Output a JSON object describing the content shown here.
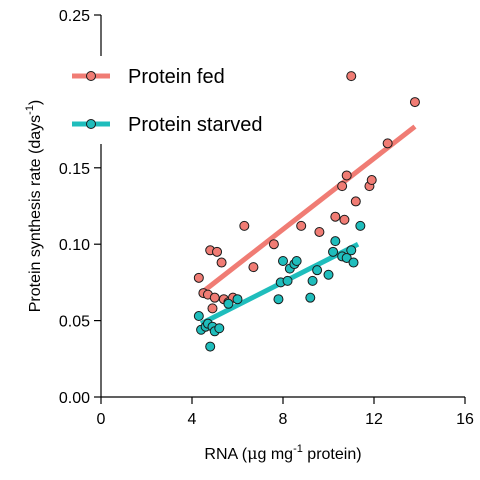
{
  "chart_data": {
    "type": "scatter",
    "xlabel": {
      "pre": "RNA  (",
      "mu": "μ",
      "mid": "g  mg",
      "sup": "-1",
      "post": " protein)"
    },
    "ylabel": {
      "pre": "Protein synthesis rate  (days",
      "sup": "-1",
      "post": ")"
    },
    "xlim": [
      0,
      16
    ],
    "ylim": [
      0,
      0.25
    ],
    "xticks": [
      "0",
      "4",
      "8",
      "12",
      "16"
    ],
    "yticks": [
      "0.00",
      "0.05",
      "0.10",
      "0.15",
      "0.25"
    ],
    "ytick_values": [
      0,
      0.05,
      0.1,
      0.15,
      0.25
    ],
    "grid": false,
    "legend_position": "top-left",
    "series": [
      {
        "name": "Protein fed",
        "color": "#f07c74",
        "fit": [
          [
            4.4,
            0.068
          ],
          [
            13.8,
            0.177
          ]
        ],
        "points": [
          [
            4.3,
            0.078
          ],
          [
            4.5,
            0.068
          ],
          [
            4.7,
            0.067
          ],
          [
            4.8,
            0.096
          ],
          [
            4.9,
            0.058
          ],
          [
            5.0,
            0.065
          ],
          [
            5.1,
            0.095
          ],
          [
            5.3,
            0.088
          ],
          [
            5.4,
            0.064
          ],
          [
            5.6,
            0.062
          ],
          [
            5.8,
            0.065
          ],
          [
            6.3,
            0.112
          ],
          [
            6.7,
            0.085
          ],
          [
            7.6,
            0.1
          ],
          [
            8.8,
            0.112
          ],
          [
            9.6,
            0.108
          ],
          [
            10.3,
            0.118
          ],
          [
            10.6,
            0.138
          ],
          [
            10.7,
            0.116
          ],
          [
            10.8,
            0.145
          ],
          [
            11.0,
            0.21
          ],
          [
            11.2,
            0.128
          ],
          [
            11.8,
            0.138
          ],
          [
            11.9,
            0.142
          ],
          [
            12.6,
            0.166
          ],
          [
            13.8,
            0.193
          ]
        ]
      },
      {
        "name": "Protein starved",
        "color": "#1fbdbc",
        "fit": [
          [
            4.4,
            0.048
          ],
          [
            11.3,
            0.1
          ]
        ],
        "points": [
          [
            4.3,
            0.053
          ],
          [
            4.4,
            0.044
          ],
          [
            4.6,
            0.046
          ],
          [
            4.7,
            0.048
          ],
          [
            4.8,
            0.033
          ],
          [
            4.9,
            0.046
          ],
          [
            5.0,
            0.043
          ],
          [
            5.2,
            0.045
          ],
          [
            5.6,
            0.061
          ],
          [
            6.0,
            0.064
          ],
          [
            7.8,
            0.064
          ],
          [
            7.9,
            0.075
          ],
          [
            8.0,
            0.089
          ],
          [
            8.2,
            0.076
          ],
          [
            8.3,
            0.084
          ],
          [
            8.5,
            0.087
          ],
          [
            8.6,
            0.089
          ],
          [
            9.2,
            0.065
          ],
          [
            9.3,
            0.076
          ],
          [
            9.5,
            0.083
          ],
          [
            10.0,
            0.08
          ],
          [
            10.2,
            0.095
          ],
          [
            10.3,
            0.102
          ],
          [
            10.6,
            0.092
          ],
          [
            10.8,
            0.091
          ],
          [
            11.0,
            0.096
          ],
          [
            11.1,
            0.088
          ],
          [
            11.4,
            0.112
          ]
        ]
      }
    ]
  }
}
